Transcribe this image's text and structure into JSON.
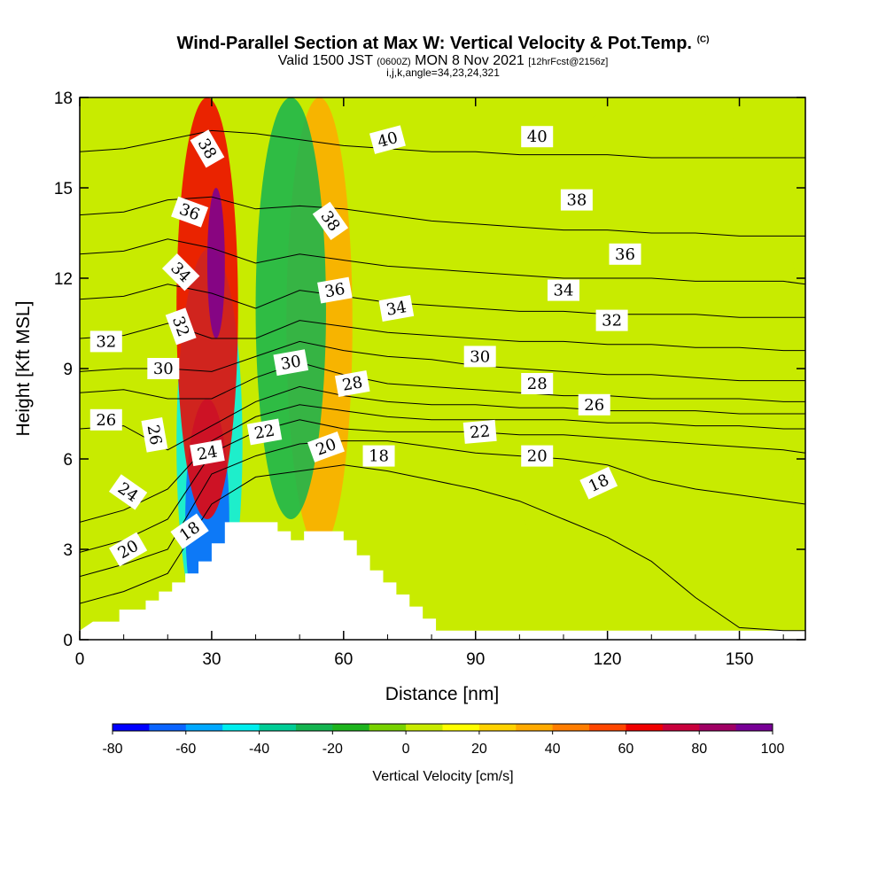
{
  "title": {
    "main": "Wind-Parallel Section at Max W: Vertical Velocity & Pot.Temp.",
    "copyright": "(C)",
    "valid_prefix": "Valid 1500 JST",
    "valid_utc": "(0600Z)",
    "valid_date": "MON 8 Nov 2021",
    "forecast": "[12hrFcst@2156z]",
    "ijk": "i,j,k,angle=34,23,24,321"
  },
  "chart_data": {
    "type": "heatmap",
    "xlabel": "Distance [nm]",
    "ylabel": "Height [Kft MSL]",
    "xlim": [
      0,
      165
    ],
    "ylim": [
      0,
      18
    ],
    "xticks": [
      0,
      30,
      60,
      90,
      120,
      150
    ],
    "yticks": [
      0,
      3,
      6,
      9,
      12,
      15,
      18
    ],
    "colorbar": {
      "label": "Vertical Velocity [cm/s]",
      "levels": [
        -80,
        -70,
        -60,
        -50,
        -40,
        -30,
        -20,
        -10,
        0,
        10,
        20,
        30,
        40,
        50,
        60,
        70,
        80,
        90,
        100
      ],
      "tick_labels": [
        "-80",
        "-60",
        "-40",
        "-20",
        "0",
        "20",
        "40",
        "60",
        "80",
        "100"
      ],
      "colors": [
        "#0000ff",
        "#0a64ff",
        "#00a8ff",
        "#00eeee",
        "#00cd96",
        "#14b450",
        "#1eb41e",
        "#78d200",
        "#c8eb00",
        "#ffff00",
        "#ffd200",
        "#ffaa00",
        "#ff7d00",
        "#ff4600",
        "#f00000",
        "#c8003c",
        "#a00064",
        "#780096"
      ]
    },
    "background_w": 0,
    "w_features": [
      {
        "name": "downdraft-core",
        "x": [
          22,
          37
        ],
        "y": [
          0,
          13
        ],
        "value": -45
      },
      {
        "name": "downdraft-max",
        "x": [
          24,
          34
        ],
        "y": [
          0,
          8
        ],
        "value": -70
      },
      {
        "name": "updraft-core",
        "x": [
          22,
          36
        ],
        "y": [
          4,
          18
        ],
        "value": 60
      },
      {
        "name": "updraft-max",
        "x": [
          29,
          33
        ],
        "y": [
          10,
          15
        ],
        "value": 95
      },
      {
        "name": "secondary-updraft",
        "x": [
          47,
          62
        ],
        "y": [
          3,
          18
        ],
        "value": 30
      },
      {
        "name": "secondary-downdraft",
        "x": [
          40,
          56
        ],
        "y": [
          4,
          18
        ],
        "value": -25
      },
      {
        "name": "far-field-weak-ascent",
        "x": [
          95,
          165
        ],
        "y": [
          0,
          18
        ],
        "value": 5
      }
    ],
    "terrain": {
      "x": [
        0,
        3,
        9,
        9,
        15,
        15,
        18,
        18,
        21,
        21,
        24,
        24,
        27,
        27,
        30,
        30,
        33,
        33,
        36,
        36,
        39,
        39,
        42,
        42,
        45,
        45,
        48,
        48,
        51,
        51,
        54,
        54,
        57,
        57,
        60,
        60,
        63,
        63,
        66,
        66,
        69,
        69,
        72,
        72,
        75,
        75,
        78,
        78,
        81,
        81,
        165
      ],
      "y": [
        0.3,
        0.6,
        0.6,
        1.0,
        1.0,
        1.3,
        1.3,
        1.6,
        1.6,
        1.9,
        1.9,
        2.2,
        2.2,
        2.6,
        2.6,
        3.2,
        3.2,
        3.9,
        3.9,
        3.9,
        3.9,
        3.9,
        3.9,
        3.9,
        3.9,
        3.6,
        3.6,
        3.3,
        3.3,
        3.6,
        3.6,
        3.6,
        3.6,
        3.6,
        3.6,
        3.3,
        3.3,
        2.8,
        2.8,
        2.3,
        2.3,
        1.9,
        1.9,
        1.5,
        1.5,
        1.1,
        1.1,
        0.7,
        0.7,
        0.3,
        0.3
      ]
    },
    "isentropes": [
      {
        "theta": 18,
        "y": [
          1.2,
          1.6,
          2.2,
          4.5,
          5.4,
          5.6,
          5.8,
          5.6,
          5.3,
          5.0,
          4.6,
          4.0,
          3.4,
          2.6,
          1.4,
          0.4,
          0.3,
          0.3
        ]
      },
      {
        "theta": 20,
        "y": [
          2.1,
          2.5,
          3.0,
          5.5,
          6.1,
          6.5,
          6.6,
          6.6,
          6.4,
          6.2,
          6.1,
          6.0,
          5.8,
          5.3,
          5.0,
          4.8,
          4.6,
          4.5
        ]
      },
      {
        "theta": 22,
        "y": [
          2.9,
          3.3,
          4.0,
          6.2,
          6.9,
          7.3,
          7.0,
          6.9,
          6.9,
          6.9,
          6.8,
          6.8,
          6.7,
          6.6,
          6.5,
          6.4,
          6.3,
          6.2
        ]
      },
      {
        "theta": 24,
        "y": [
          3.9,
          4.3,
          5.0,
          6.6,
          7.4,
          7.8,
          7.6,
          7.4,
          7.3,
          7.3,
          7.3,
          7.3,
          7.2,
          7.2,
          7.1,
          7.1,
          7.0,
          7.0
        ]
      },
      {
        "theta": 26,
        "y": [
          7.0,
          7.1,
          6.3,
          7.1,
          7.9,
          8.4,
          8.1,
          7.9,
          7.8,
          7.8,
          7.7,
          7.7,
          7.6,
          7.6,
          7.6,
          7.5,
          7.5,
          7.5
        ]
      },
      {
        "theta": 28,
        "y": [
          8.2,
          8.3,
          8.0,
          8.0,
          8.7,
          9.2,
          8.8,
          8.5,
          8.4,
          8.3,
          8.2,
          8.1,
          8.1,
          8.0,
          8.0,
          8.0,
          7.9,
          7.9
        ]
      },
      {
        "theta": 30,
        "y": [
          8.9,
          9.0,
          9.0,
          8.9,
          9.4,
          9.9,
          9.6,
          9.4,
          9.3,
          9.1,
          9.0,
          8.9,
          8.8,
          8.8,
          8.7,
          8.6,
          8.6,
          8.6
        ]
      },
      {
        "theta": 32,
        "y": [
          10.0,
          10.1,
          10.5,
          10.0,
          10.0,
          10.6,
          10.4,
          10.2,
          10.1,
          10.0,
          9.9,
          9.9,
          9.8,
          9.8,
          9.7,
          9.7,
          9.6,
          9.6
        ]
      },
      {
        "theta": 34,
        "y": [
          11.3,
          11.4,
          11.8,
          11.5,
          11.0,
          11.6,
          11.4,
          11.2,
          11.1,
          11.0,
          10.9,
          10.9,
          10.8,
          10.8,
          10.8,
          10.7,
          10.7,
          10.7
        ]
      },
      {
        "theta": 36,
        "y": [
          12.8,
          12.9,
          13.3,
          13.0,
          12.5,
          12.8,
          12.6,
          12.4,
          12.3,
          12.2,
          12.1,
          12.0,
          12.0,
          12.0,
          11.9,
          11.9,
          11.9,
          11.8
        ]
      },
      {
        "theta": 38,
        "y": [
          14.1,
          14.2,
          14.6,
          14.7,
          14.3,
          14.4,
          14.3,
          14.1,
          13.9,
          13.8,
          13.7,
          13.6,
          13.6,
          13.5,
          13.5,
          13.4,
          13.4,
          13.4
        ]
      },
      {
        "theta": 40,
        "y": [
          16.2,
          16.3,
          16.6,
          16.9,
          16.8,
          16.6,
          16.4,
          16.3,
          16.2,
          16.2,
          16.1,
          16.1,
          16.1,
          16.0,
          16.0,
          16.0,
          16.0,
          16.0
        ]
      }
    ],
    "isentrope_x": [
      0,
      10,
      20,
      30,
      40,
      50,
      60,
      70,
      80,
      90,
      100,
      110,
      120,
      130,
      140,
      150,
      160,
      165
    ],
    "contour_labels": [
      {
        "text": "20",
        "x": 11,
        "y": 3.0,
        "angle": -30
      },
      {
        "text": "18",
        "x": 25,
        "y": 3.6,
        "angle": -35
      },
      {
        "text": "24",
        "x": 11,
        "y": 4.9,
        "angle": 35
      },
      {
        "text": "24",
        "x": 29,
        "y": 6.2,
        "angle": -10
      },
      {
        "text": "22",
        "x": 42,
        "y": 6.9,
        "angle": -10
      },
      {
        "text": "20",
        "x": 56,
        "y": 6.4,
        "angle": -20
      },
      {
        "text": "18",
        "x": 68,
        "y": 6.1,
        "angle": 0
      },
      {
        "text": "26",
        "x": 6,
        "y": 7.3,
        "angle": 0
      },
      {
        "text": "26",
        "x": 17,
        "y": 6.8,
        "angle": 80
      },
      {
        "text": "30",
        "x": 19,
        "y": 9.0,
        "angle": 0
      },
      {
        "text": "30",
        "x": 48,
        "y": 9.2,
        "angle": -10
      },
      {
        "text": "28",
        "x": 62,
        "y": 8.5,
        "angle": -10
      },
      {
        "text": "32",
        "x": 6,
        "y": 9.9,
        "angle": 0
      },
      {
        "text": "32",
        "x": 23,
        "y": 10.4,
        "angle": 70
      },
      {
        "text": "34",
        "x": 23,
        "y": 12.2,
        "angle": 45
      },
      {
        "text": "36",
        "x": 25,
        "y": 14.2,
        "angle": 20
      },
      {
        "text": "38",
        "x": 29,
        "y": 16.3,
        "angle": 60
      },
      {
        "text": "38",
        "x": 57,
        "y": 13.9,
        "angle": 55
      },
      {
        "text": "36",
        "x": 58,
        "y": 11.6,
        "angle": -10
      },
      {
        "text": "34",
        "x": 72,
        "y": 11.0,
        "angle": -10
      },
      {
        "text": "40",
        "x": 70,
        "y": 16.6,
        "angle": -15
      },
      {
        "text": "40",
        "x": 104,
        "y": 16.7,
        "angle": 0
      },
      {
        "text": "38",
        "x": 113,
        "y": 14.6,
        "angle": 0
      },
      {
        "text": "36",
        "x": 124,
        "y": 12.8,
        "angle": 0
      },
      {
        "text": "34",
        "x": 110,
        "y": 11.6,
        "angle": 0
      },
      {
        "text": "32",
        "x": 121,
        "y": 10.6,
        "angle": 0
      },
      {
        "text": "30",
        "x": 91,
        "y": 9.4,
        "angle": 0
      },
      {
        "text": "28",
        "x": 104,
        "y": 8.5,
        "angle": 0
      },
      {
        "text": "26",
        "x": 117,
        "y": 7.8,
        "angle": 0
      },
      {
        "text": "22",
        "x": 91,
        "y": 6.9,
        "angle": -5
      },
      {
        "text": "20",
        "x": 104,
        "y": 6.1,
        "angle": 0
      },
      {
        "text": "18",
        "x": 118,
        "y": 5.2,
        "angle": -25
      }
    ]
  }
}
